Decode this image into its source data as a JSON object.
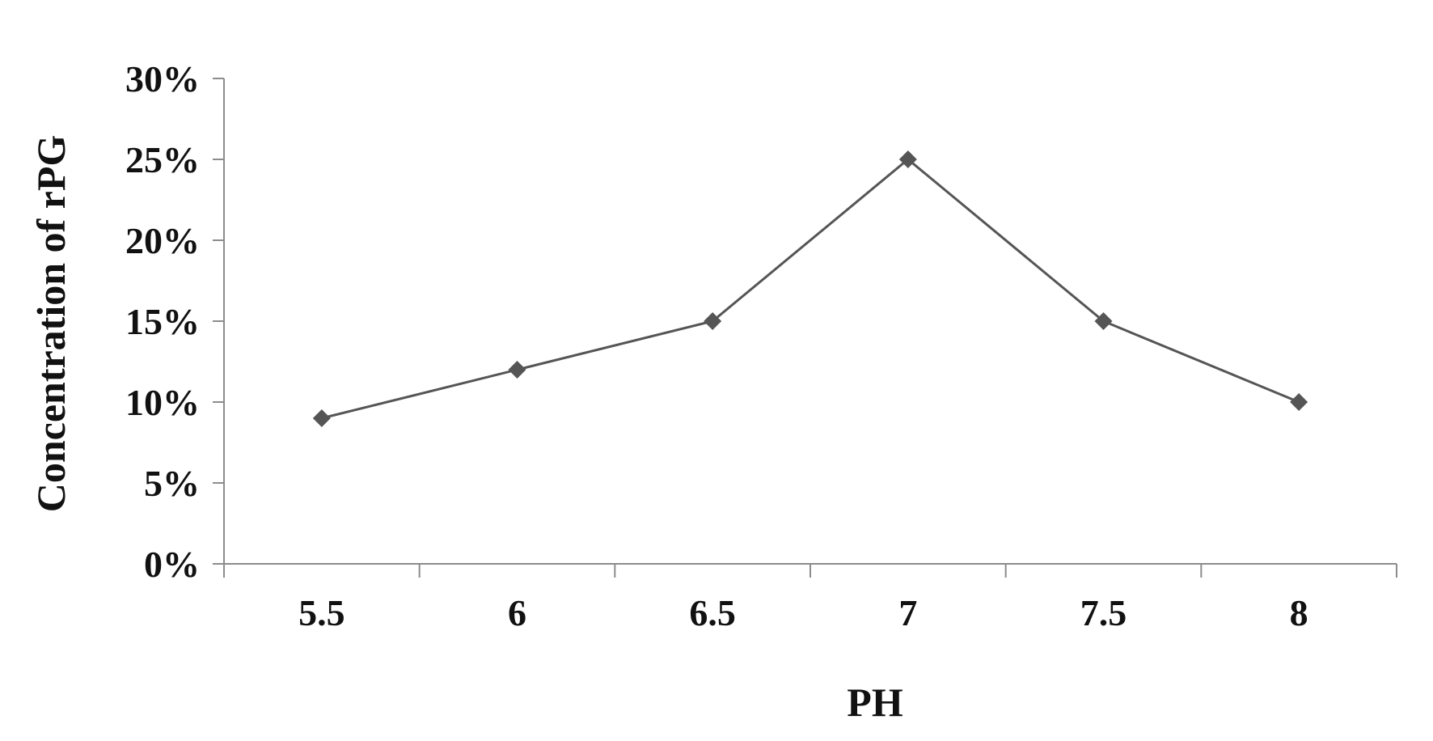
{
  "chart_data": {
    "type": "line",
    "title": "",
    "xlabel": "PH",
    "ylabel": "Concentration of rPG",
    "categories": [
      "5.5",
      "6",
      "6.5",
      "7",
      "7.5",
      "8"
    ],
    "yticks": [
      "0%",
      "5%",
      "10%",
      "15%",
      "20%",
      "25%",
      "30%"
    ],
    "ylim": [
      0,
      30
    ],
    "grid": false,
    "legend": "none",
    "series": [
      {
        "values": [
          9,
          12,
          15,
          25,
          15,
          10
        ],
        "color": "#555555",
        "marker": "diamond"
      }
    ]
  }
}
